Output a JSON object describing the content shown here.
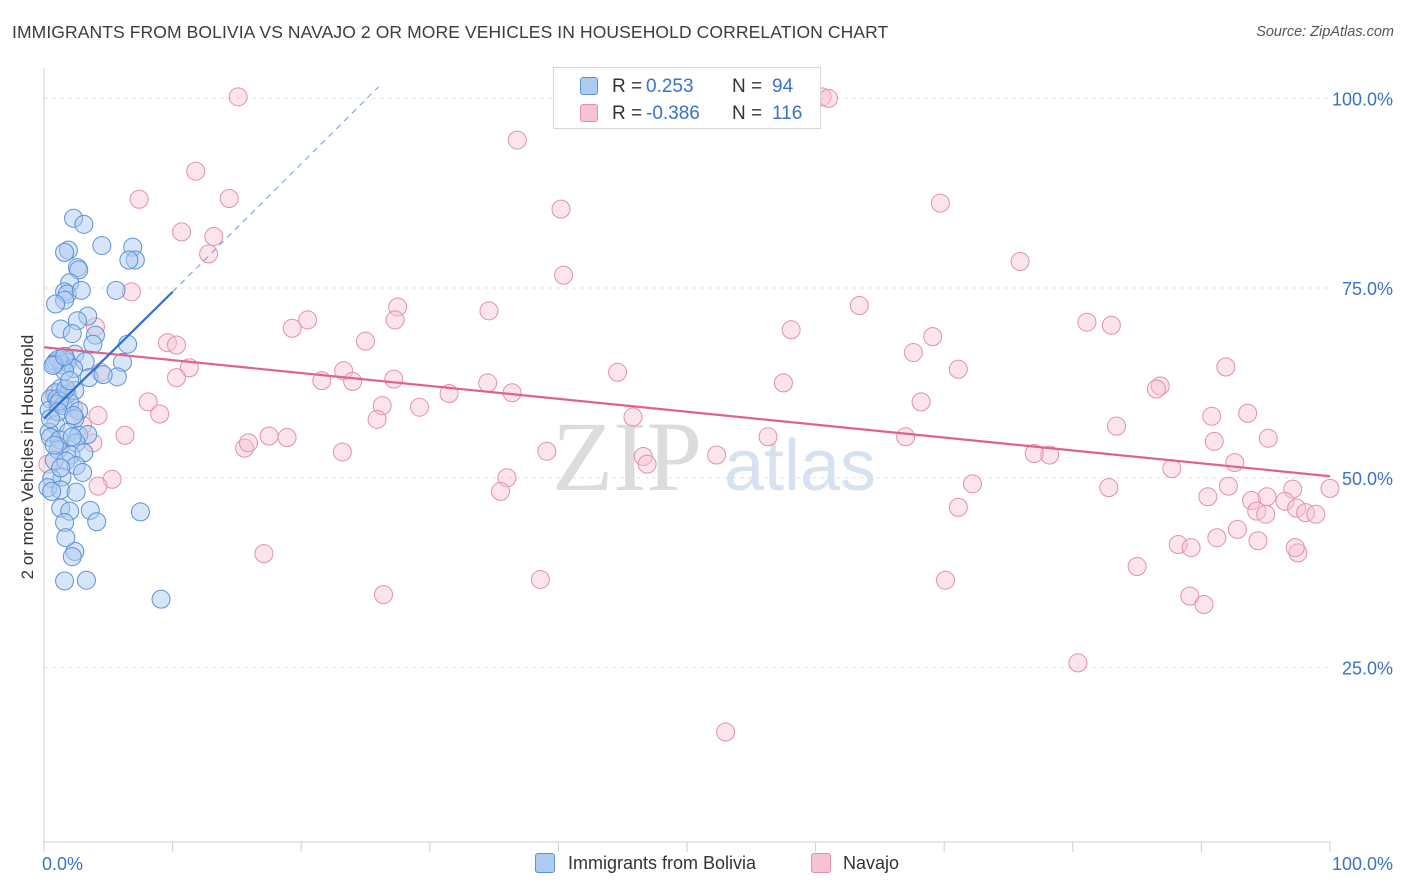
{
  "header": {
    "title": "IMMIGRANTS FROM BOLIVIA VS NAVAJO 2 OR MORE VEHICLES IN HOUSEHOLD CORRELATION CHART",
    "source": "Source: ZipAtlas.com"
  },
  "watermark": {
    "zip": "ZIP",
    "atlas": "atlas"
  },
  "legend": {
    "rows": [
      {
        "r_label": "R =",
        "r_value": "0.253",
        "n_label": "N =",
        "n_value": "94"
      },
      {
        "r_label": "R =",
        "r_value": "-0.386",
        "n_label": "N =",
        "n_value": "116"
      }
    ]
  },
  "bottom_legend": {
    "series1": "Immigrants from Bolivia",
    "series2": "Navajo"
  },
  "colors": {
    "blue_fill": "#aecbf0",
    "blue_stroke": "#5b92d8",
    "blue_line": "#2f6fd1",
    "pink_fill": "#f6c3d3",
    "pink_stroke": "#e390ab",
    "pink_line": "#e0628c",
    "axis_text": "#3a72c8",
    "value_text": "#3a72c8"
  },
  "chart_data": {
    "type": "scatter",
    "title": "IMMIGRANTS FROM BOLIVIA VS NAVAJO 2 OR MORE VEHICLES IN HOUSEHOLD CORRELATION CHART",
    "xlabel": "",
    "ylabel": "2 or more Vehicles in Household",
    "xlim": [
      0,
      100
    ],
    "ylim": [
      2,
      104
    ],
    "x_ticks": [
      "0.0%",
      "100.0%"
    ],
    "y_ticks": [
      {
        "value": 100,
        "label": "100.0%"
      },
      {
        "value": 75,
        "label": "75.0%"
      },
      {
        "value": 50,
        "label": "50.0%"
      },
      {
        "value": 25,
        "label": "25.0%"
      }
    ],
    "grid": true,
    "series": [
      {
        "name": "Immigrants from Bolivia",
        "r": 0.253,
        "n": 94,
        "trend": {
          "x0": 0,
          "y0": 57.8,
          "x1": 10,
          "y1": 74.5,
          "dash_to_x": 26,
          "dash_to_y": 101.5
        },
        "points": [
          [
            2.3,
            84.2
          ],
          [
            3.1,
            83.4
          ],
          [
            4.5,
            80.6
          ],
          [
            6.9,
            80.4
          ],
          [
            1.9,
            80.0
          ],
          [
            1.6,
            79.7
          ],
          [
            7.1,
            78.7
          ],
          [
            6.6,
            78.7
          ],
          [
            2.6,
            77.7
          ],
          [
            2.7,
            77.4
          ],
          [
            2.0,
            75.7
          ],
          [
            1.6,
            74.5
          ],
          [
            1.8,
            74.2
          ],
          [
            2.9,
            74.7
          ],
          [
            5.6,
            74.7
          ],
          [
            1.6,
            73.4
          ],
          [
            0.9,
            72.9
          ],
          [
            3.4,
            71.3
          ],
          [
            2.6,
            70.7
          ],
          [
            1.3,
            69.6
          ],
          [
            2.2,
            69.0
          ],
          [
            4.0,
            68.8
          ],
          [
            3.8,
            67.6
          ],
          [
            6.5,
            67.6
          ],
          [
            2.4,
            66.3
          ],
          [
            1.7,
            65.5
          ],
          [
            0.9,
            65.3
          ],
          [
            1.8,
            65.2
          ],
          [
            3.2,
            65.3
          ],
          [
            1.4,
            64.9
          ],
          [
            2.3,
            64.4
          ],
          [
            1.6,
            64.1
          ],
          [
            6.1,
            65.2
          ],
          [
            3.5,
            63.2
          ],
          [
            5.7,
            63.3
          ],
          [
            4.6,
            63.6
          ],
          [
            1.3,
            61.8
          ],
          [
            0.9,
            61.2
          ],
          [
            1.8,
            61.0
          ],
          [
            2.4,
            61.5
          ],
          [
            0.5,
            60.4
          ],
          [
            1.0,
            60.4
          ],
          [
            1.1,
            59.7
          ],
          [
            1.5,
            59.5
          ],
          [
            2.0,
            59.9
          ],
          [
            2.7,
            58.8
          ],
          [
            0.4,
            58.9
          ],
          [
            2.4,
            57.8
          ],
          [
            0.9,
            57.0
          ],
          [
            0.4,
            56.0
          ],
          [
            1.9,
            56.0
          ],
          [
            2.7,
            55.6
          ],
          [
            3.4,
            55.7
          ],
          [
            0.5,
            55.3
          ],
          [
            1.2,
            55.0
          ],
          [
            2.5,
            54.6
          ],
          [
            1.1,
            53.7
          ],
          [
            2.1,
            53.0
          ],
          [
            3.1,
            53.3
          ],
          [
            0.8,
            52.3
          ],
          [
            1.7,
            52.2
          ],
          [
            2.5,
            51.6
          ],
          [
            1.4,
            50.1
          ],
          [
            3.0,
            50.7
          ],
          [
            0.6,
            49.9
          ],
          [
            0.3,
            48.7
          ],
          [
            1.3,
            48.4
          ],
          [
            0.6,
            48.2
          ],
          [
            2.5,
            48.1
          ],
          [
            1.3,
            46.0
          ],
          [
            2.0,
            45.6
          ],
          [
            3.6,
            45.7
          ],
          [
            1.6,
            44.1
          ],
          [
            4.1,
            44.2
          ],
          [
            7.5,
            45.5
          ],
          [
            2.4,
            40.3
          ],
          [
            2.2,
            39.6
          ],
          [
            3.3,
            36.5
          ],
          [
            1.6,
            36.4
          ],
          [
            9.1,
            34.0
          ],
          [
            1.7,
            42.1
          ],
          [
            2.2,
            55.4
          ],
          [
            1.1,
            65.6
          ],
          [
            0.8,
            65.0
          ],
          [
            0.7,
            64.8
          ],
          [
            1.2,
            60.1
          ],
          [
            1.7,
            61.7
          ],
          [
            1.1,
            58.7
          ],
          [
            0.5,
            57.8
          ],
          [
            2.3,
            58.2
          ],
          [
            0.8,
            54.3
          ],
          [
            1.3,
            51.3
          ],
          [
            1.6,
            66.0
          ],
          [
            2.0,
            62.8
          ]
        ]
      },
      {
        "name": "Navajo",
        "r": -0.386,
        "n": 116,
        "trend": {
          "x0": 0,
          "y0": 67.2,
          "x1": 100,
          "y1": 50.2
        },
        "points": [
          [
            15.1,
            100.2
          ],
          [
            60.5,
            100.2
          ],
          [
            61.0,
            100.0
          ],
          [
            36.8,
            94.5
          ],
          [
            11.8,
            90.4
          ],
          [
            7.4,
            86.7
          ],
          [
            14.4,
            86.8
          ],
          [
            40.2,
            85.4
          ],
          [
            69.7,
            86.2
          ],
          [
            10.7,
            82.4
          ],
          [
            13.2,
            81.8
          ],
          [
            12.8,
            79.5
          ],
          [
            75.9,
            78.5
          ],
          [
            40.4,
            76.7
          ],
          [
            6.8,
            74.5
          ],
          [
            27.5,
            72.5
          ],
          [
            34.6,
            72.0
          ],
          [
            63.4,
            72.7
          ],
          [
            20.5,
            70.8
          ],
          [
            27.3,
            70.8
          ],
          [
            81.1,
            70.5
          ],
          [
            19.3,
            69.7
          ],
          [
            4.0,
            69.9
          ],
          [
            58.1,
            69.5
          ],
          [
            69.1,
            68.6
          ],
          [
            83.0,
            70.1
          ],
          [
            25.0,
            68.0
          ],
          [
            9.6,
            67.8
          ],
          [
            10.3,
            67.5
          ],
          [
            67.6,
            66.5
          ],
          [
            11.3,
            64.5
          ],
          [
            23.3,
            64.1
          ],
          [
            91.9,
            64.6
          ],
          [
            71.1,
            64.3
          ],
          [
            57.5,
            62.5
          ],
          [
            44.6,
            63.9
          ],
          [
            27.2,
            63.0
          ],
          [
            10.3,
            63.2
          ],
          [
            34.5,
            62.5
          ],
          [
            86.8,
            62.1
          ],
          [
            24.0,
            62.7
          ],
          [
            4.4,
            63.9
          ],
          [
            21.6,
            62.8
          ],
          [
            36.4,
            61.2
          ],
          [
            86.5,
            61.7
          ],
          [
            31.5,
            61.1
          ],
          [
            68.2,
            60.0
          ],
          [
            0.8,
            61.0
          ],
          [
            8.1,
            60.0
          ],
          [
            26.3,
            59.5
          ],
          [
            29.2,
            59.3
          ],
          [
            2.3,
            59.2
          ],
          [
            4.2,
            58.2
          ],
          [
            9.0,
            58.4
          ],
          [
            45.8,
            58.0
          ],
          [
            25.9,
            57.7
          ],
          [
            90.8,
            58.1
          ],
          [
            93.6,
            58.5
          ],
          [
            3.0,
            56.9
          ],
          [
            6.3,
            55.6
          ],
          [
            17.5,
            55.5
          ],
          [
            18.9,
            55.3
          ],
          [
            56.3,
            55.4
          ],
          [
            67.0,
            55.4
          ],
          [
            83.4,
            56.8
          ],
          [
            95.2,
            55.2
          ],
          [
            91.0,
            54.8
          ],
          [
            1.3,
            54.1
          ],
          [
            3.8,
            54.6
          ],
          [
            15.6,
            53.9
          ],
          [
            15.9,
            54.6
          ],
          [
            23.2,
            53.4
          ],
          [
            39.1,
            53.5
          ],
          [
            46.6,
            52.8
          ],
          [
            52.3,
            53.0
          ],
          [
            78.2,
            53.0
          ],
          [
            77.0,
            53.2
          ],
          [
            92.6,
            52.0
          ],
          [
            46.9,
            51.8
          ],
          [
            87.7,
            51.2
          ],
          [
            0.3,
            51.8
          ],
          [
            5.3,
            49.8
          ],
          [
            36.0,
            50.0
          ],
          [
            4.2,
            48.9
          ],
          [
            72.2,
            49.2
          ],
          [
            82.8,
            48.7
          ],
          [
            92.1,
            48.9
          ],
          [
            97.1,
            48.5
          ],
          [
            100.0,
            48.6
          ],
          [
            35.5,
            48.2
          ],
          [
            90.5,
            47.5
          ],
          [
            93.9,
            47.0
          ],
          [
            95.1,
            47.5
          ],
          [
            96.5,
            46.9
          ],
          [
            71.1,
            46.1
          ],
          [
            94.3,
            45.6
          ],
          [
            97.4,
            46.0
          ],
          [
            98.1,
            45.4
          ],
          [
            98.9,
            45.2
          ],
          [
            95.0,
            45.2
          ],
          [
            91.2,
            42.1
          ],
          [
            92.8,
            43.2
          ],
          [
            94.4,
            41.7
          ],
          [
            88.2,
            41.2
          ],
          [
            89.2,
            40.8
          ],
          [
            97.5,
            40.1
          ],
          [
            97.3,
            40.8
          ],
          [
            17.1,
            40.0
          ],
          [
            85.0,
            38.3
          ],
          [
            38.6,
            36.6
          ],
          [
            70.1,
            36.5
          ],
          [
            26.4,
            34.6
          ],
          [
            89.1,
            34.4
          ],
          [
            90.2,
            33.3
          ],
          [
            80.4,
            25.6
          ],
          [
            53.0,
            16.5
          ]
        ]
      }
    ]
  }
}
